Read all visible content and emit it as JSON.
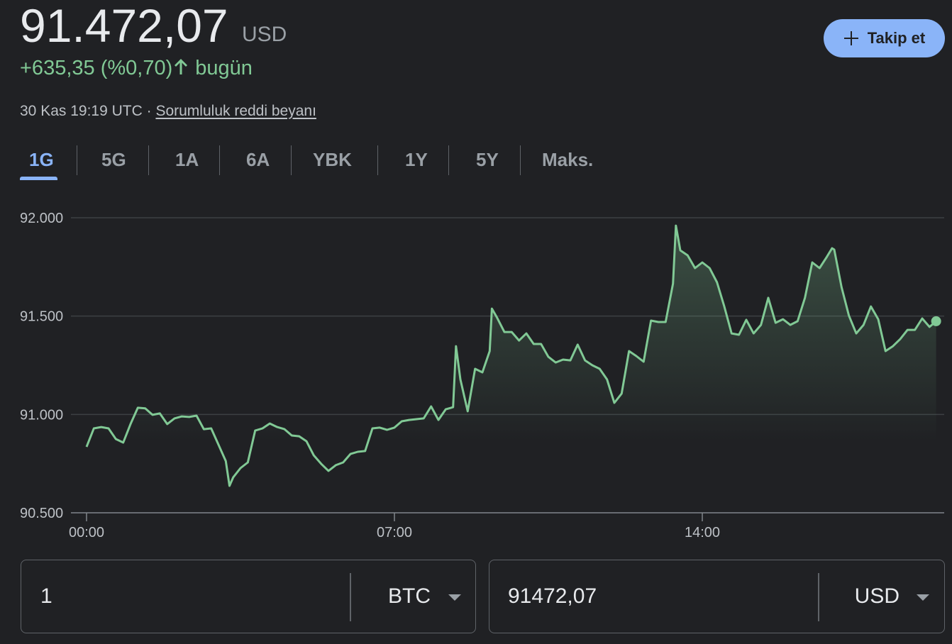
{
  "header": {
    "price": "91.472,07",
    "currency": "USD",
    "change": "+635,35 (%0,70)",
    "change_suffix": "bugün",
    "timestamp": "30 Kas 19:19 UTC",
    "separator": "·",
    "disclaimer": "Sorumluluk reddi beyanı",
    "follow_button": "Takip et"
  },
  "tabs": [
    "1G",
    "5G",
    "1A",
    "6A",
    "YBK",
    "1Y",
    "5Y",
    "Maks."
  ],
  "active_tab": 0,
  "chart_data": {
    "type": "line",
    "color": "#81c995",
    "grid": true,
    "x": [
      0,
      10,
      20,
      30,
      40,
      50,
      60,
      70,
      80,
      90,
      100,
      110,
      120,
      130,
      140,
      150,
      160,
      170,
      180,
      190,
      195,
      200,
      210,
      220,
      230,
      240,
      250,
      260,
      270,
      280,
      290,
      300,
      310,
      320,
      330,
      340,
      350,
      360,
      370,
      380,
      390,
      400,
      410,
      420,
      430,
      440,
      450,
      460,
      470,
      480,
      490,
      500,
      504,
      510,
      520,
      530,
      540,
      550,
      553,
      560,
      570,
      580,
      590,
      600,
      610,
      620,
      630,
      640,
      650,
      660,
      670,
      680,
      690,
      700,
      710,
      720,
      730,
      740,
      750,
      760,
      770,
      780,
      790,
      800,
      804,
      810,
      820,
      830,
      840,
      850,
      860,
      870,
      880,
      890,
      900,
      910,
      920,
      930,
      940,
      950,
      960,
      970,
      980,
      990,
      1000,
      1010,
      1017,
      1020,
      1030,
      1040,
      1050,
      1060,
      1070,
      1080,
      1090,
      1100,
      1110,
      1120,
      1130,
      1140,
      1150,
      1159
    ],
    "values": [
      90835,
      90929,
      90936,
      90929,
      90875,
      90857,
      90951,
      91034,
      91031,
      90998,
      91005,
      90951,
      90980,
      90990,
      90987,
      90994,
      90925,
      90929,
      90846,
      90763,
      90637,
      90680,
      90727,
      90756,
      90918,
      90929,
      90954,
      90936,
      90925,
      90893,
      90889,
      90864,
      90792,
      90749,
      90713,
      90742,
      90756,
      90799,
      90810,
      90814,
      90929,
      90933,
      90922,
      90933,
      90965,
      90972,
      90976,
      90980,
      91041,
      90972,
      91026,
      91037,
      91347,
      91178,
      91016,
      91232,
      91214,
      91322,
      91538,
      91492,
      91419,
      91419,
      91376,
      91412,
      91358,
      91358,
      91293,
      91264,
      91279,
      91275,
      91355,
      91275,
      91250,
      91232,
      91178,
      91059,
      91106,
      91322,
      91297,
      91268,
      91477,
      91470,
      91470,
      91665,
      91960,
      91834,
      91809,
      91744,
      91773,
      91744,
      91672,
      91549,
      91412,
      91405,
      91481,
      91412,
      91455,
      91593,
      91466,
      91484,
      91455,
      91474,
      91593,
      91773,
      91744,
      91802,
      91845,
      91838,
      91647,
      91502,
      91412,
      91455,
      91549,
      91484,
      91322,
      91347,
      91383,
      91430,
      91430,
      91488,
      91445,
      91474
    ],
    "xlim": [
      0,
      1170
    ],
    "xticks": [
      {
        "value": 0,
        "label": "00:00"
      },
      {
        "value": 420,
        "label": "07:00"
      },
      {
        "value": 840,
        "label": "14:00"
      }
    ],
    "ylim": [
      90500,
      92000
    ],
    "yticks": [
      {
        "value": 90500,
        "label": "90.500"
      },
      {
        "value": 91000,
        "label": "91.000"
      },
      {
        "value": 91500,
        "label": "91.500"
      },
      {
        "value": 92000,
        "label": "92.000"
      }
    ]
  },
  "converter": {
    "from_amount": "1",
    "from_currency": "BTC",
    "to_amount": "91472,07",
    "to_currency": "USD"
  }
}
